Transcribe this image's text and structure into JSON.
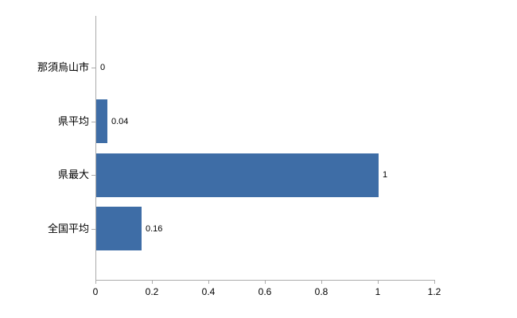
{
  "chart_data": {
    "type": "bar",
    "orientation": "horizontal",
    "title": "",
    "xlabel": "",
    "ylabel": "",
    "categories": [
      "那須烏山市",
      "県平均",
      "県最大",
      "全国平均"
    ],
    "values": [
      0,
      0.04,
      1,
      0.16
    ],
    "value_labels": [
      "0",
      "0.04",
      "1",
      "0.16"
    ],
    "x_ticks": [
      0,
      0.2,
      0.4,
      0.6,
      0.8,
      1,
      1.2
    ],
    "x_tick_labels": [
      "0",
      "0.2",
      "0.4",
      "0.6",
      "0.8",
      "1",
      "1.2"
    ],
    "xlim": [
      0,
      1.2
    ],
    "grid": false,
    "legend": null,
    "bar_color": "#3e6da6",
    "axis_color": "#ababab"
  }
}
